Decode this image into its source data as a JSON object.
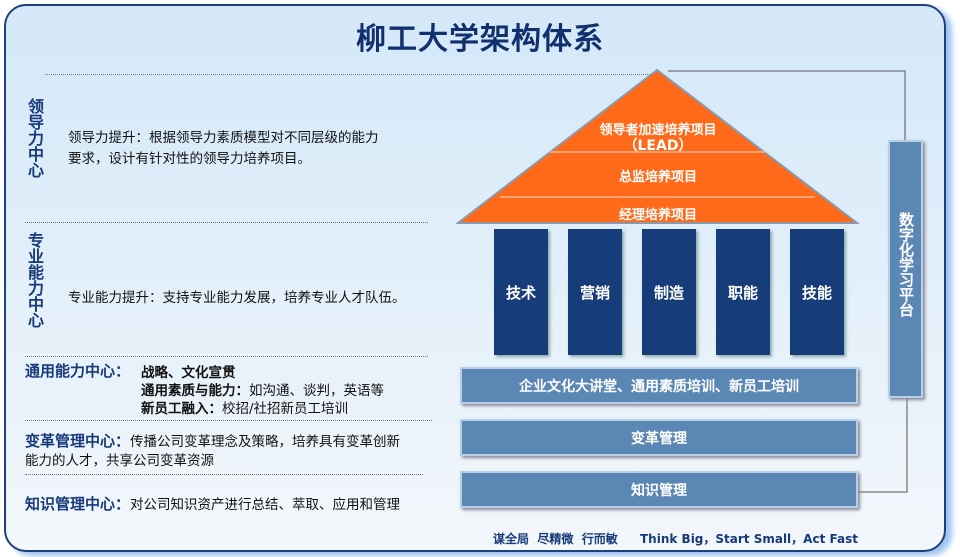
{
  "title": "柳工大学架构体系",
  "left": {
    "leadership": {
      "label": "领导力中心",
      "lines": [
        "领导力提升：根据领导力素质模型对不同层级的能力",
        "要求，设计有针对性的领导力培养项目。"
      ]
    },
    "professional": {
      "label": "专业能力中心",
      "text": "专业能力提升：支持专业能力发展，培养专业人才队伍。"
    },
    "general": {
      "label": "通用能力中心：",
      "item1": "战略、文化宣贯",
      "item2_head": "通用素质与能力：",
      "item2_text": "如沟通、谈判，英语等",
      "item3_head": "新员工融入：",
      "item3_text": "校招/社招新员工培训"
    },
    "change": {
      "label": "变革管理中心：",
      "line1": "传播公司变革理念及策略，培养具有变革创新",
      "line2": "能力的人才，共享公司变革资源"
    },
    "knowledge": {
      "label": "知识管理中心：",
      "text": "对公司知识资产进行总结、萃取、应用和管理"
    }
  },
  "roof": {
    "top": "领导者加速培养项目",
    "top_sub": "（LEAD）",
    "middle": "总监培养项目",
    "bottom": "经理培养项目"
  },
  "pillars": [
    "技术",
    "营销",
    "制造",
    "职能",
    "技能"
  ],
  "bars": [
    "企业文化大讲堂、通用素质培训、新员工培训",
    "变革管理",
    "知识管理"
  ],
  "side": "数字化学习平台",
  "footer": {
    "cn": "谋全局  尽精微  行而敏",
    "en": "Think Big，Start Small，Act Fast"
  },
  "colors": {
    "roof": "#ff6a1a",
    "pillar": "#173c7a",
    "bar": "#5b87b5",
    "heading": "#173a7a"
  }
}
